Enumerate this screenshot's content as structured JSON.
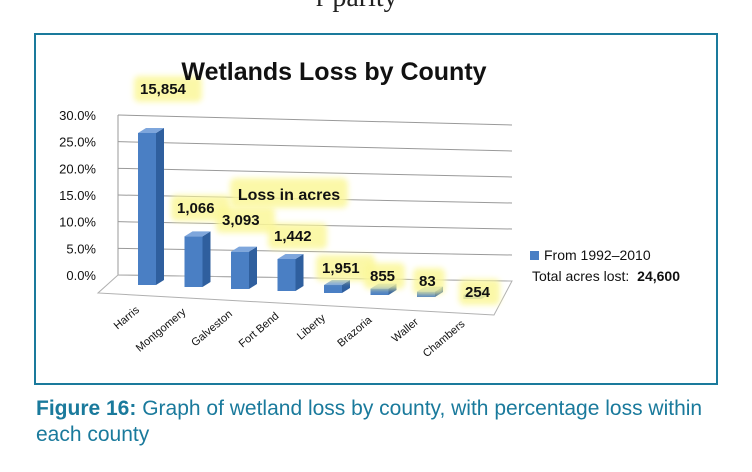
{
  "top_fragment": "r parity",
  "chart_data": {
    "type": "bar",
    "title": "Wetlands Loss by County",
    "categories": [
      "Harris",
      "Montgomery",
      "Galveston",
      "Fort Bend",
      "Liberty",
      "Brazoria",
      "Waller",
      "Chambers"
    ],
    "series": [
      {
        "name": "From 1992–2010",
        "values": [
          28.5,
          9.5,
          7.0,
          6.0,
          1.5,
          1.2,
          1.0,
          0.8
        ],
        "data_labels": [
          "15,854",
          "1,066",
          "3,093",
          "1,442",
          "1,951",
          "855",
          "83",
          "254"
        ]
      }
    ],
    "yticks": [
      "30.0%",
      "25.0%",
      "20.0%",
      "15.0%",
      "10.0%",
      "5.0%",
      "0.0%"
    ],
    "ylim": [
      0,
      30
    ],
    "annotation": "Loss in acres",
    "legend": {
      "position": "right",
      "series_label": "From 1992–2010",
      "total_label": "Total acres lost:",
      "total_value": "24,600"
    },
    "colors": {
      "bar": "#4a7fc4",
      "bar_dark": "#2f5f9e",
      "bar_top": "#7ea6dc",
      "highlight": "#fbf79a",
      "frame": "#1a7a9c"
    },
    "grid": true
  },
  "caption": {
    "label": "Figure 16:",
    "text": " Graph of wetland loss by county, with percentage loss within each county"
  }
}
